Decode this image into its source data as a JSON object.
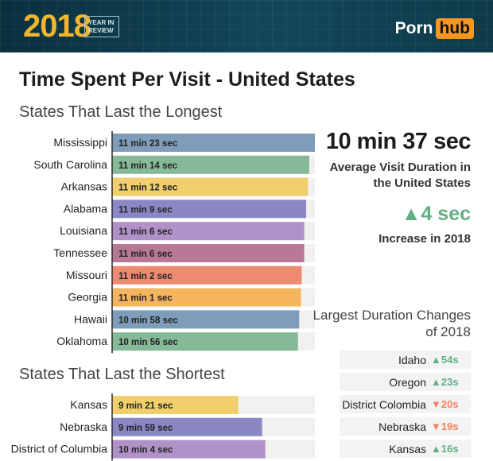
{
  "header": {
    "year": "2018",
    "badge_line1": "YEAR IN",
    "badge_line2": "REVIEW",
    "logo_part1": "Porn",
    "logo_part2": "hub"
  },
  "title": "Time Spent Per Visit - United States",
  "section_longest": "States That Last the Longest",
  "section_shortest": "States That Last the Shortest",
  "summary": {
    "average_value": "10 min 37 sec",
    "average_label": "Average Visit Duration in the United States",
    "increase_value": "4 sec",
    "increase_label": "Increase in 2018"
  },
  "changes": {
    "title": "Largest Duration Changes of 2018",
    "rows": [
      {
        "state": "Idaho",
        "delta": "54s",
        "direction": "up"
      },
      {
        "state": "Oregon",
        "delta": "23s",
        "direction": "up"
      },
      {
        "state": "District Colombia",
        "delta": "20s",
        "direction": "down"
      },
      {
        "state": "Nebraska",
        "delta": "19s",
        "direction": "down"
      },
      {
        "state": "Kansas",
        "delta": "16s",
        "direction": "up"
      }
    ]
  },
  "colors": {
    "up": "#62b086",
    "down": "#ef8363",
    "track": "#f1f1f1"
  },
  "chart_data": [
    {
      "type": "bar",
      "orientation": "horizontal",
      "categories": [
        "Mississippi",
        "South Carolina",
        "Arkansas",
        "Alabama",
        "Louisiana",
        "Tennessee",
        "Missouri",
        "Georgia",
        "Hawaii",
        "Oklahoma"
      ],
      "values_seconds": [
        683,
        674,
        672,
        669,
        666,
        666,
        662,
        661,
        658,
        656
      ],
      "labels": [
        "11 min 23 sec",
        "11 min 14 sec",
        "11 min 12 sec",
        "11 min 9 sec",
        "11 min 6 sec",
        "11 min 6 sec",
        "11 min 2 sec",
        "11 min 1 sec",
        "10 min 58 sec",
        "10 min 56 sec"
      ],
      "colors": [
        "#7e9db8",
        "#86b998",
        "#f0cf6c",
        "#8b87c4",
        "#b091c8",
        "#b77996",
        "#ee8a70",
        "#f5b55f",
        "#7e9db8",
        "#86b998"
      ]
    },
    {
      "type": "bar",
      "orientation": "horizontal",
      "categories": [
        "Kansas",
        "Nebraska",
        "District of Columbia"
      ],
      "values_seconds": [
        561,
        599,
        604
      ],
      "labels": [
        "9 min 21 sec",
        "9 min 59 sec",
        "10 min 4 sec"
      ],
      "colors": [
        "#f0cf6c",
        "#8b87c4",
        "#b091c8"
      ]
    }
  ]
}
